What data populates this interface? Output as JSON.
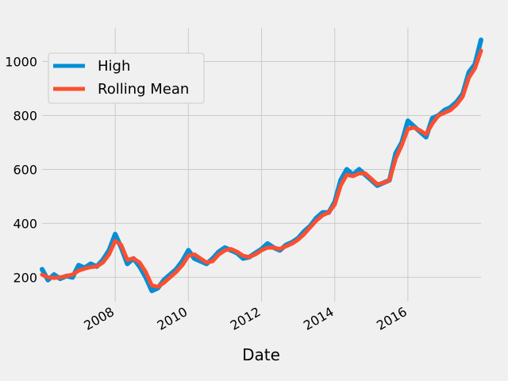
{
  "chart_data": {
    "type": "line",
    "xlabel": "Date",
    "ylabel": "",
    "x_type": "date",
    "xlim": [
      "2006-01-01",
      "2017-12-31"
    ],
    "ylim": [
      110,
      1125
    ],
    "grid": true,
    "legend_position": "top-left",
    "y_ticks": [
      200,
      400,
      600,
      800,
      1000
    ],
    "x_ticks": [
      {
        "label": "2008",
        "date": "2008-01-01"
      },
      {
        "label": "2010",
        "date": "2010-01-01"
      },
      {
        "label": "2012",
        "date": "2012-01-01"
      },
      {
        "label": "2014",
        "date": "2014-01-01"
      },
      {
        "label": "2016",
        "date": "2016-01-01"
      }
    ],
    "colors": {
      "high": "#008fd5",
      "rolling_mean": "#fc4f30",
      "background": "#f0f0f0",
      "grid": "#cbcbcb"
    },
    "series": [
      {
        "name": "High",
        "key": "high",
        "x": [
          "2006-01-01",
          "2006-03-01",
          "2006-05-01",
          "2006-07-01",
          "2006-09-01",
          "2006-11-01",
          "2007-01-01",
          "2007-03-01",
          "2007-05-01",
          "2007-07-01",
          "2007-09-01",
          "2007-11-01",
          "2008-01-01",
          "2008-03-01",
          "2008-05-01",
          "2008-07-01",
          "2008-09-01",
          "2008-11-01",
          "2009-01-01",
          "2009-03-01",
          "2009-05-01",
          "2009-07-01",
          "2009-09-01",
          "2009-11-01",
          "2010-01-01",
          "2010-03-01",
          "2010-05-01",
          "2010-07-01",
          "2010-09-01",
          "2010-11-01",
          "2011-01-01",
          "2011-03-01",
          "2011-05-01",
          "2011-07-01",
          "2011-09-01",
          "2011-11-01",
          "2012-01-01",
          "2012-03-01",
          "2012-05-01",
          "2012-07-01",
          "2012-09-01",
          "2012-11-01",
          "2013-01-01",
          "2013-03-01",
          "2013-05-01",
          "2013-07-01",
          "2013-09-01",
          "2013-11-01",
          "2014-01-01",
          "2014-03-01",
          "2014-05-01",
          "2014-07-01",
          "2014-09-01",
          "2014-11-01",
          "2015-01-01",
          "2015-03-01",
          "2015-05-01",
          "2015-07-01",
          "2015-09-01",
          "2015-11-01",
          "2016-01-01",
          "2016-03-01",
          "2016-05-01",
          "2016-07-01",
          "2016-09-01",
          "2016-11-01",
          "2017-01-01",
          "2017-03-01",
          "2017-05-01",
          "2017-07-01",
          "2017-09-01",
          "2017-11-01",
          "2017-12-31"
        ],
        "values": [
          230,
          190,
          210,
          195,
          205,
          200,
          245,
          235,
          250,
          240,
          265,
          300,
          360,
          310,
          250,
          270,
          240,
          200,
          150,
          160,
          190,
          210,
          230,
          260,
          300,
          270,
          260,
          250,
          270,
          295,
          310,
          300,
          290,
          270,
          275,
          290,
          305,
          325,
          310,
          300,
          320,
          330,
          345,
          370,
          390,
          420,
          440,
          440,
          480,
          560,
          600,
          580,
          600,
          580,
          560,
          540,
          550,
          560,
          660,
          700,
          780,
          760,
          740,
          720,
          790,
          800,
          820,
          830,
          850,
          880,
          960,
          990,
          1080
        ]
      },
      {
        "name": "Rolling Mean",
        "key": "rolling_mean",
        "x": [
          "2006-01-01",
          "2006-03-01",
          "2006-05-01",
          "2006-07-01",
          "2006-09-01",
          "2006-11-01",
          "2007-01-01",
          "2007-03-01",
          "2007-05-01",
          "2007-07-01",
          "2007-09-01",
          "2007-11-01",
          "2008-01-01",
          "2008-03-01",
          "2008-05-01",
          "2008-07-01",
          "2008-09-01",
          "2008-11-01",
          "2009-01-01",
          "2009-03-01",
          "2009-05-01",
          "2009-07-01",
          "2009-09-01",
          "2009-11-01",
          "2010-01-01",
          "2010-03-01",
          "2010-05-01",
          "2010-07-01",
          "2010-09-01",
          "2010-11-01",
          "2011-01-01",
          "2011-03-01",
          "2011-05-01",
          "2011-07-01",
          "2011-09-01",
          "2011-11-01",
          "2012-01-01",
          "2012-03-01",
          "2012-05-01",
          "2012-07-01",
          "2012-09-01",
          "2012-11-01",
          "2013-01-01",
          "2013-03-01",
          "2013-05-01",
          "2013-07-01",
          "2013-09-01",
          "2013-11-01",
          "2014-01-01",
          "2014-03-01",
          "2014-05-01",
          "2014-07-01",
          "2014-09-01",
          "2014-11-01",
          "2015-01-01",
          "2015-03-01",
          "2015-05-01",
          "2015-07-01",
          "2015-09-01",
          "2015-11-01",
          "2016-01-01",
          "2016-03-01",
          "2016-05-01",
          "2016-07-01",
          "2016-09-01",
          "2016-11-01",
          "2017-01-01",
          "2017-03-01",
          "2017-05-01",
          "2017-07-01",
          "2017-09-01",
          "2017-11-01",
          "2017-12-31"
        ],
        "values": [
          210,
          200,
          198,
          200,
          205,
          210,
          225,
          232,
          238,
          240,
          255,
          285,
          335,
          320,
          265,
          270,
          255,
          220,
          170,
          165,
          180,
          200,
          220,
          245,
          280,
          285,
          270,
          255,
          260,
          285,
          300,
          305,
          295,
          280,
          275,
          285,
          300,
          310,
          310,
          305,
          315,
          325,
          340,
          360,
          385,
          410,
          430,
          440,
          470,
          540,
          580,
          575,
          585,
          585,
          565,
          545,
          550,
          560,
          640,
          690,
          750,
          755,
          745,
          730,
          770,
          800,
          810,
          820,
          840,
          870,
          940,
          975,
          1040
        ]
      }
    ]
  }
}
